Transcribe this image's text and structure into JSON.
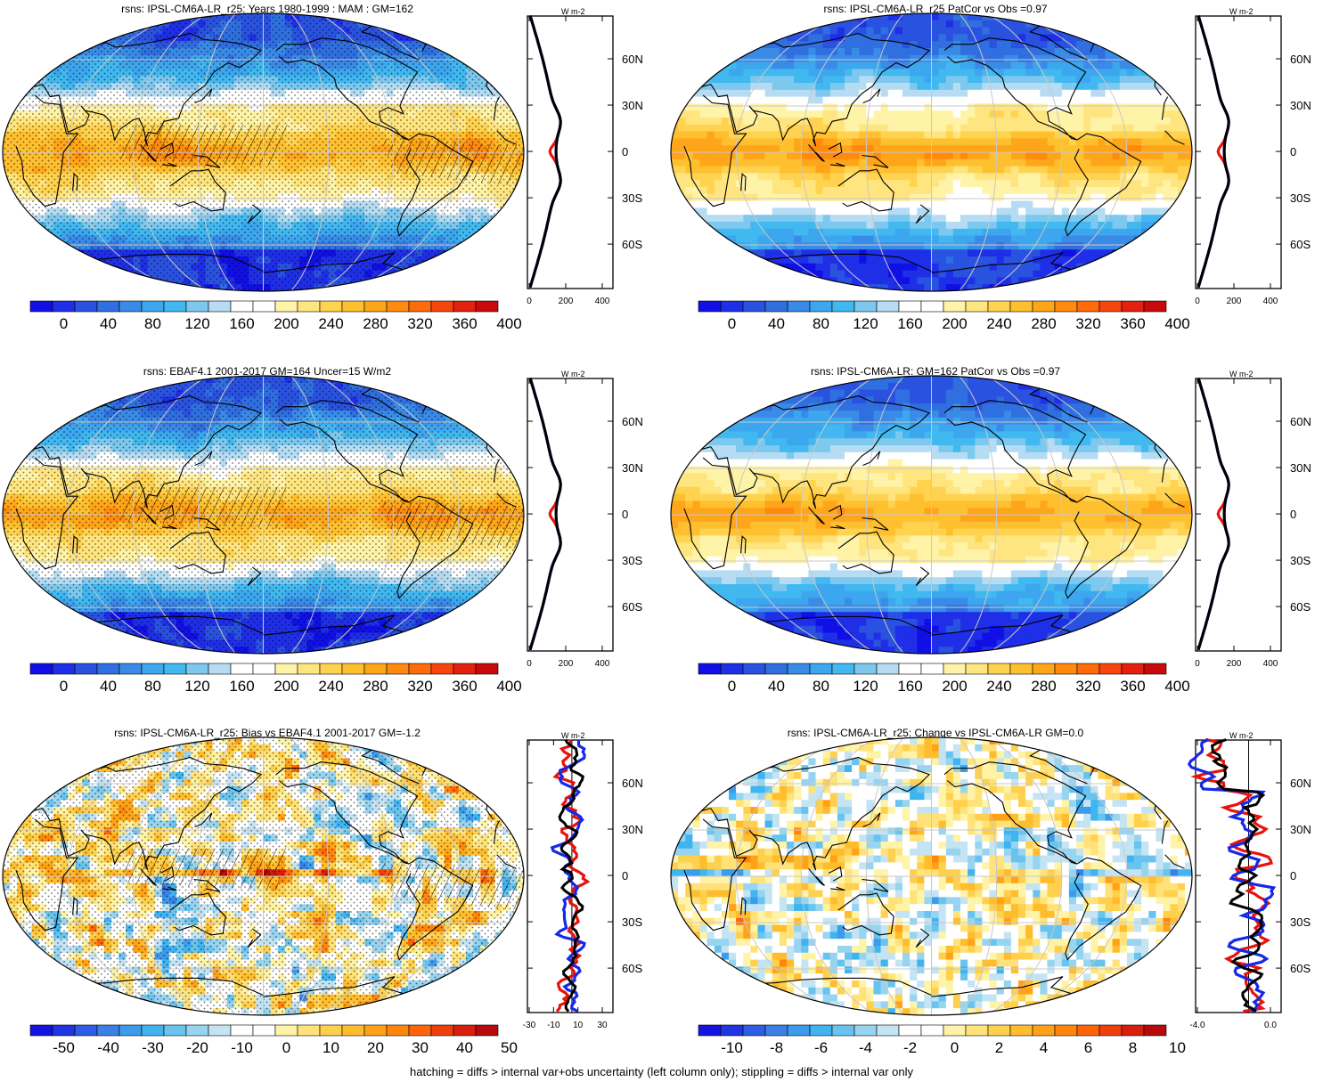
{
  "panels": [
    {
      "id": "p1",
      "title": "rsns: IPSL-CM6A-LR_r25: Years 1980-1999 : MAM : GM=162",
      "kind": "mean",
      "stipple": true,
      "hatch": true,
      "colorbar": {
        "labels": [
          "0",
          "40",
          "80",
          "120",
          "160",
          "200",
          "240",
          "280",
          "320",
          "360",
          "400"
        ],
        "palette": "seq"
      },
      "profile": {
        "units": "W m-2",
        "xticks": [
          "0",
          "200",
          "400"
        ],
        "yticks": [
          "60N",
          "30N",
          "0",
          "30S",
          "60S"
        ]
      }
    },
    {
      "id": "p2",
      "title": "rsns: IPSL-CM6A-LR_r25 PatCor vs Obs =0.97",
      "kind": "mean",
      "stipple": false,
      "hatch": false,
      "colorbar": {
        "labels": [
          "0",
          "40",
          "80",
          "120",
          "160",
          "200",
          "240",
          "280",
          "320",
          "360",
          "400"
        ],
        "palette": "seq"
      },
      "profile": {
        "units": "W m-2",
        "xticks": [
          "0",
          "200",
          "400"
        ],
        "yticks": [
          "60N",
          "30N",
          "0",
          "30S",
          "60S"
        ]
      }
    },
    {
      "id": "p3",
      "title": "rsns: EBAF4.1 2001-2017 GM=164 Uncer=15 W/m2",
      "kind": "mean",
      "stipple": true,
      "hatch": true,
      "colorbar": {
        "labels": [
          "0",
          "40",
          "80",
          "120",
          "160",
          "200",
          "240",
          "280",
          "320",
          "360",
          "400"
        ],
        "palette": "seq"
      },
      "profile": {
        "units": "W m-2",
        "xticks": [
          "0",
          "200",
          "400"
        ],
        "yticks": [
          "60N",
          "30N",
          "0",
          "30S",
          "60S"
        ]
      }
    },
    {
      "id": "p4",
      "title": "rsns: IPSL-CM6A-LR: GM=162 PatCor vs Obs =0.97",
      "kind": "mean",
      "stipple": false,
      "hatch": false,
      "colorbar": {
        "labels": [
          "0",
          "40",
          "80",
          "120",
          "160",
          "200",
          "240",
          "280",
          "320",
          "360",
          "400"
        ],
        "palette": "seq"
      },
      "profile": {
        "units": "W m-2",
        "xticks": [
          "0",
          "200",
          "400"
        ],
        "yticks": [
          "60N",
          "30N",
          "0",
          "30S",
          "60S"
        ]
      }
    },
    {
      "id": "p5",
      "title": "rsns: IPSL-CM6A-LR_r25: Bias vs EBAF4.1 2001-2017 GM=-1.2",
      "kind": "bias",
      "stipple": true,
      "hatch": true,
      "colorbar": {
        "labels": [
          "-50",
          "-40",
          "-30",
          "-20",
          "-10",
          "0",
          "10",
          "20",
          "30",
          "40",
          "50"
        ],
        "palette": "div"
      },
      "profile": {
        "units": "W m-2",
        "xticks": [
          "-30",
          "-10",
          "10",
          "30"
        ],
        "yticks": [
          "60N",
          "30N",
          "0",
          "30S",
          "60S"
        ]
      }
    },
    {
      "id": "p6",
      "title": "rsns: IPSL-CM6A-LR_r25: Change vs IPSL-CM6A-LR GM=0.0",
      "kind": "change",
      "stipple": false,
      "hatch": false,
      "colorbar": {
        "labels": [
          "-10",
          "-8",
          "-6",
          "-4",
          "-2",
          "0",
          "2",
          "4",
          "6",
          "8",
          "10"
        ],
        "palette": "div"
      },
      "profile": {
        "units": "W m-2",
        "xticks": [
          "-4.0",
          "0.0"
        ],
        "yticks": [
          "60N",
          "30N",
          "0",
          "30S",
          "60S"
        ]
      }
    }
  ],
  "palettes": {
    "seq": [
      "#1010e6",
      "#1f2fe8",
      "#2a52e0",
      "#2f6fe0",
      "#3a8be8",
      "#3ca6ee",
      "#41b8f0",
      "#7cc8ee",
      "#b5dcf2",
      "#ffffff",
      "#ffffff",
      "#fff3a8",
      "#ffe57f",
      "#ffd350",
      "#ffc030",
      "#ffa519",
      "#ff8a0d",
      "#ff6a0a",
      "#f5460d",
      "#e4200e",
      "#c80a0a"
    ],
    "div": [
      "#1414e0",
      "#2036e2",
      "#2f5ce4",
      "#3a80e6",
      "#3c9ceb",
      "#3fb4f0",
      "#68c4ee",
      "#97d4f0",
      "#c4e4f4",
      "#ffffff",
      "#ffffff",
      "#fff3a8",
      "#ffe37a",
      "#ffd04e",
      "#ffbc2c",
      "#ffa218",
      "#ff860c",
      "#ff640a",
      "#ee400d",
      "#d81f0e",
      "#b80a0a"
    ]
  },
  "footer": "hatching = diffs > internal var+obs uncertainty (left column only); stippling = diffs > internal var only",
  "legend_colors": {
    "red": "#e8120c",
    "blue": "#1428e8",
    "black": "#000000"
  }
}
